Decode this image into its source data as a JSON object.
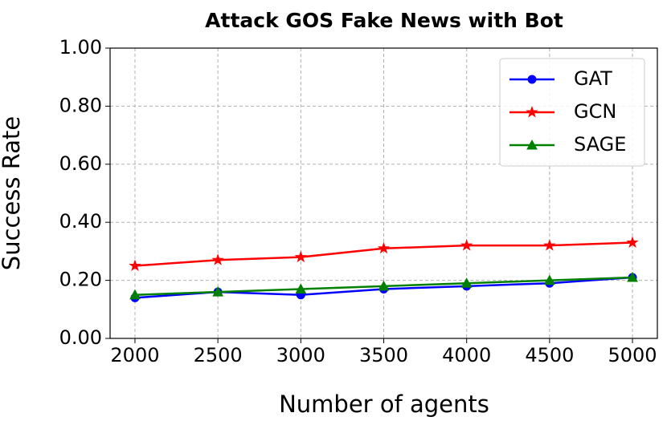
{
  "chart_data": {
    "type": "line",
    "title": "Attack GOS Fake News with Bot",
    "x_label": "Number of agents",
    "y_label": "Success Rate",
    "x": [
      2000,
      2500,
      3000,
      3500,
      4000,
      4500,
      5000
    ],
    "series": [
      {
        "name": "GAT",
        "color": "#0000ff",
        "marker": "circle",
        "values": [
          0.14,
          0.16,
          0.15,
          0.17,
          0.18,
          0.19,
          0.21
        ]
      },
      {
        "name": "GCN",
        "color": "#ff0000",
        "marker": "star",
        "values": [
          0.25,
          0.27,
          0.28,
          0.31,
          0.32,
          0.32,
          0.33
        ]
      },
      {
        "name": "SAGE",
        "color": "#008000",
        "marker": "triangle",
        "values": [
          0.15,
          0.16,
          0.17,
          0.18,
          0.19,
          0.2,
          0.21
        ]
      }
    ],
    "xlim": [
      1850,
      5150
    ],
    "xticks": [
      2000,
      2500,
      3000,
      3500,
      4000,
      4500,
      5000
    ],
    "ylim": [
      0,
      1
    ],
    "yticks": [
      {
        "value": 0,
        "label": "0.00"
      },
      {
        "value": 0.2,
        "label": "0.20"
      },
      {
        "value": 0.4,
        "label": "0.40"
      },
      {
        "value": 0.6,
        "label": "0.60"
      },
      {
        "value": 0.8,
        "label": "0.80"
      },
      {
        "value": 1,
        "label": "1.00"
      }
    ],
    "grid": true,
    "legend": "upper right"
  }
}
